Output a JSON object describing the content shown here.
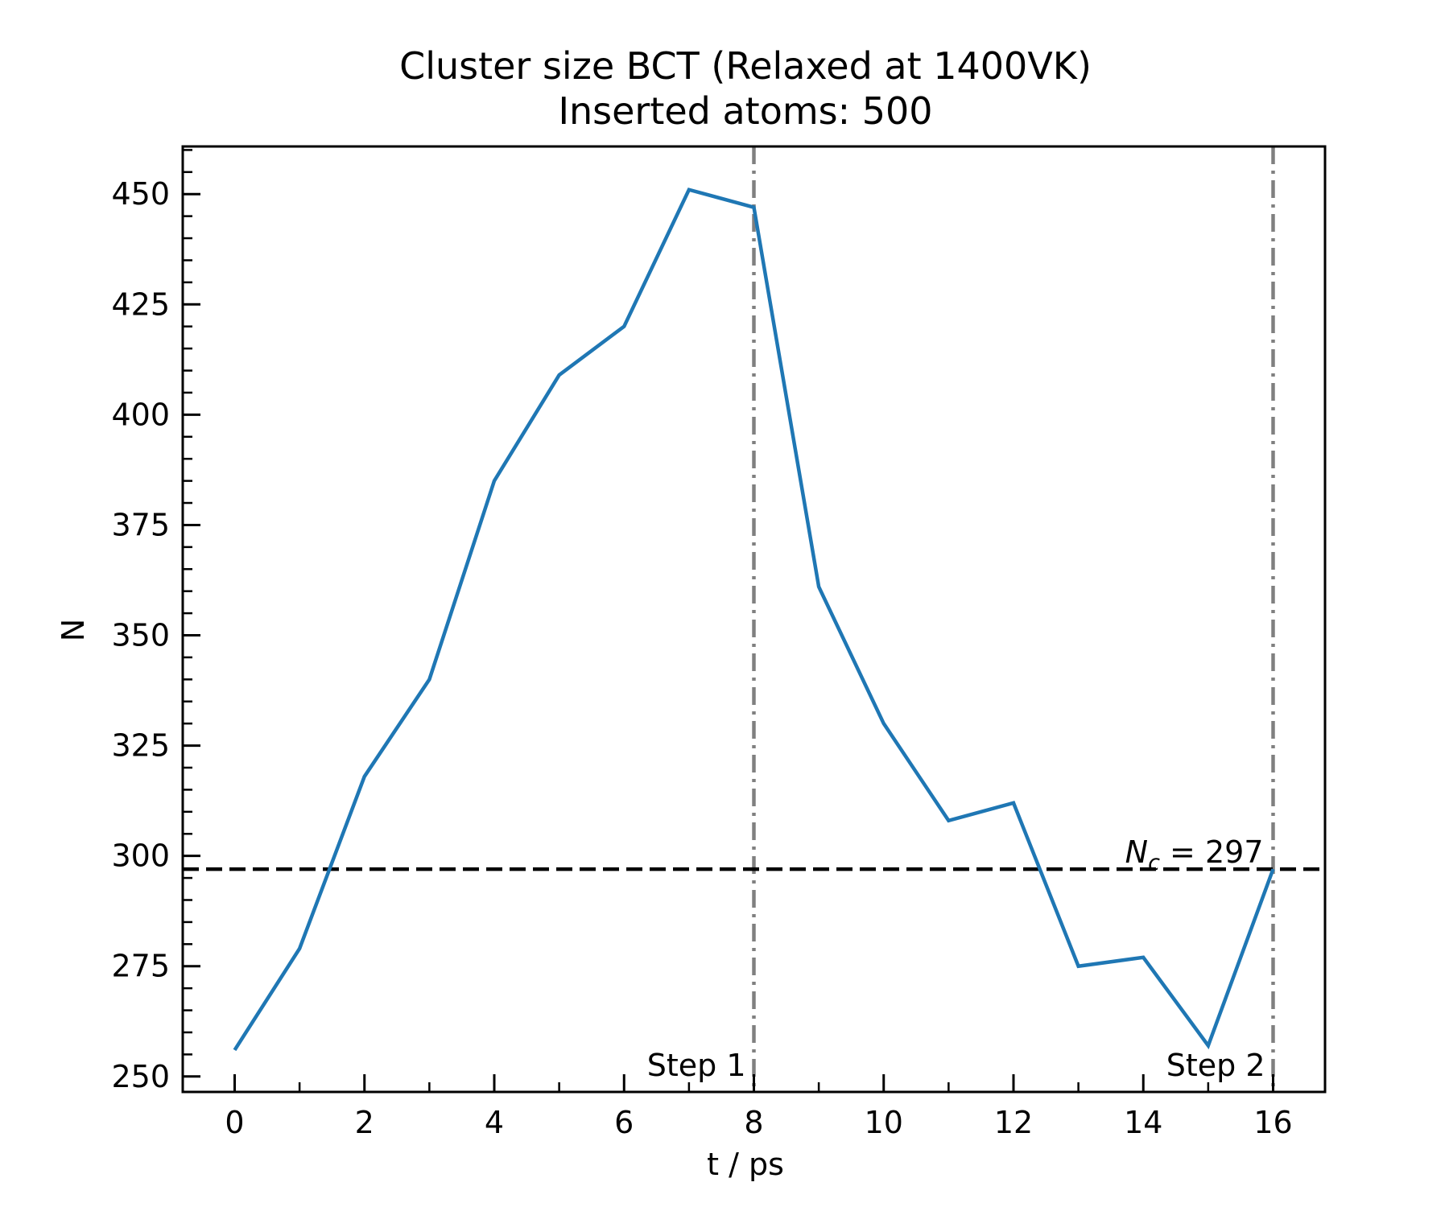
{
  "chart_data": {
    "type": "line",
    "title": "Cluster size BCT (Relaxed at 1400VK)",
    "subtitle": "Inserted atoms: 500",
    "xlabel": "t / ps",
    "ylabel": "N",
    "xlim": [
      -0.8,
      16.8
    ],
    "ylim": [
      246.5,
      460.8
    ],
    "xticks": [
      0,
      2,
      4,
      6,
      8,
      10,
      12,
      14,
      16
    ],
    "yticks": [
      250,
      275,
      300,
      325,
      350,
      375,
      400,
      425,
      450
    ],
    "x_minor_step": 1,
    "y_minor_step": 5,
    "grid": false,
    "series": [
      {
        "color": "#1f77b4",
        "x": [
          0,
          1,
          2,
          3,
          4,
          5,
          6,
          7,
          8,
          9,
          10,
          11,
          12,
          13,
          14,
          15,
          16
        ],
        "values": [
          256,
          279,
          318,
          340,
          385,
          409,
          420,
          451,
          447,
          361,
          330,
          308,
          312,
          275,
          277,
          257,
          297
        ]
      }
    ],
    "hlines": [
      {
        "y": 297,
        "style": "dashed",
        "color": "#000000",
        "label_main": "N",
        "label_sub": "c",
        "label_rest": " = 297"
      }
    ],
    "vlines": [
      {
        "x": 8,
        "style": "dashdot",
        "color": "#808080",
        "label": "Step 1"
      },
      {
        "x": 16,
        "style": "dashdot",
        "color": "#808080",
        "label": "Step 2"
      }
    ]
  }
}
